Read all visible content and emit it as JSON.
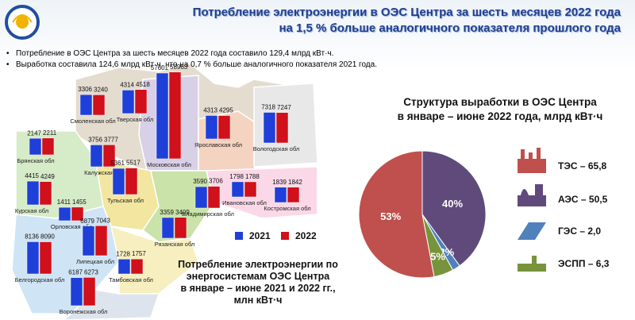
{
  "header": {
    "title": "Потребление электроэнергии в ОЭС Центра за шесть  месяцев 2022 года\nна 1,5 % больше аналогичного показателя прошлого года"
  },
  "bullets": [
    "Потребление  в ОЭС Центра за шесть месяцев 2022 года составило  129,4 млрд кВт·ч.",
    "Выработка  составила  124,6 млрд кВт·ч, что на 0,7 % больше аналогичного  показателя  2021 года."
  ],
  "chart_data": [
    {
      "type": "bar",
      "title": "Потребление электроэнергии по\nэнергосистемам ОЭС Центра\nв январе – июне 2021 и 2022 гг.,\nмлн кВт·ч",
      "categories": [
        "Смоленская обл",
        "Тверская обл",
        "Московская обл",
        "Ярославская обл",
        "Вологодская обл",
        "Брянская обл",
        "Калужская обл",
        "Курская обл",
        "Орловская обл",
        "Тульская обл",
        "Владимирская обл",
        "Ивановская обл",
        "Костромская обл",
        "Рязанская обл",
        "Липецкая обл",
        "Белгородская обл",
        "Тамбовская обл",
        "Воронежская обл"
      ],
      "series": [
        {
          "name": "2021",
          "color": "#1f3fd9",
          "values": [
            3306,
            4314,
            57601,
            4313,
            7318,
            2147,
            3756,
            4415,
            1411,
            5361,
            3590,
            1798,
            1839,
            3359,
            6879,
            8136,
            1728,
            6187
          ]
        },
        {
          "name": "2022",
          "color": "#d0101a",
          "values": [
            3240,
            4518,
            58963,
            4295,
            7247,
            2211,
            3777,
            4249,
            1455,
            5517,
            3706,
            1788,
            1842,
            3409,
            7043,
            8090,
            1757,
            6273
          ]
        }
      ]
    },
    {
      "type": "pie",
      "title": "Структура выработки в ОЭС Центра\nв январе – июне 2022 года, млрд кВт·ч",
      "categories": [
        "ТЭС – 65,8",
        "АЭС – 50,5",
        "ГЭС – 2,0",
        "ЭСПП – 6,3"
      ],
      "values": [
        53,
        40,
        2,
        5
      ],
      "value_labels": [
        "53%",
        "40%",
        "2%",
        "5%"
      ],
      "colors": [
        "#c0504d",
        "#604a7b",
        "#4f81bd",
        "#77933c"
      ]
    }
  ]
}
